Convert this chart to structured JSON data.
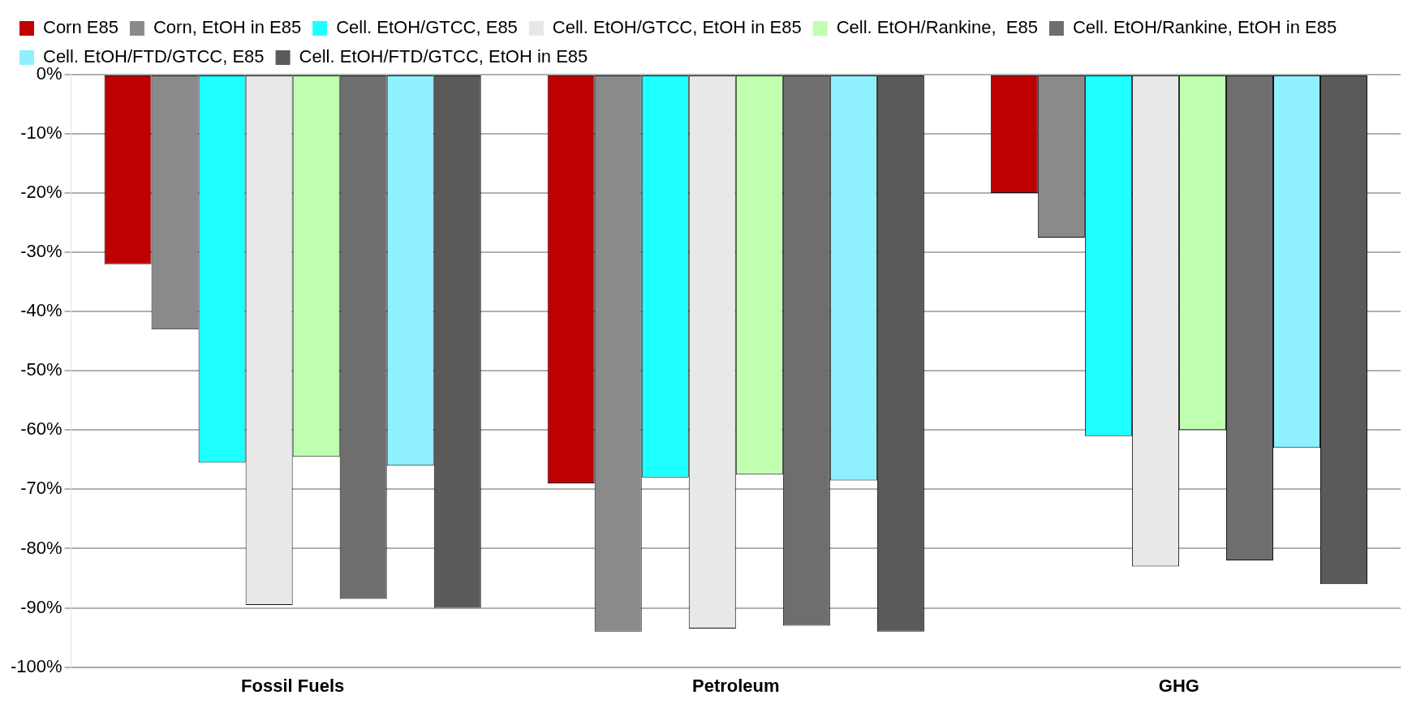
{
  "chart_data": {
    "type": "bar",
    "categories": [
      "Fossil Fuels",
      "Petroleum",
      "GHG"
    ],
    "series": [
      {
        "name": "Corn E85",
        "color": "#bf0000",
        "values": [
          -32,
          -69,
          -20
        ]
      },
      {
        "name": "Corn, EtOH in E85",
        "color": "#8a8a8a",
        "values": [
          -43,
          -94,
          -27.5
        ]
      },
      {
        "name": "Cell. EtOH/GTCC, E85",
        "color": "#1effff",
        "values": [
          -65.5,
          -68,
          -61
        ]
      },
      {
        "name": "Cell. EtOH/GTCC, EtOH in E85",
        "color": "#e8e8e8",
        "values": [
          -89.5,
          -93.5,
          -83
        ]
      },
      {
        "name": "Cell. EtOH/Rankine,  E85",
        "color": "#c0ffb0",
        "values": [
          -64.5,
          -67.5,
          -60
        ]
      },
      {
        "name": "Cell. EtOH/Rankine, EtOH in E85",
        "color": "#6e6e6e",
        "values": [
          -88.5,
          -93,
          -82
        ]
      },
      {
        "name": "Cell. EtOH/FTD/GTCC, E85",
        "color": "#8ff0ff",
        "values": [
          -66,
          -68.5,
          -63
        ]
      },
      {
        "name": "Cell. EtOH/FTD/GTCC, EtOH in E85",
        "color": "#5a5a5a",
        "values": [
          -90,
          -94,
          -86
        ]
      }
    ],
    "ylim": [
      -100,
      0
    ],
    "yticks": [
      {
        "value": 0,
        "label": "0%"
      },
      {
        "value": -10,
        "label": "-10%"
      },
      {
        "value": -20,
        "label": "-20%"
      },
      {
        "value": -30,
        "label": "-30%"
      },
      {
        "value": -40,
        "label": "-40%"
      },
      {
        "value": -50,
        "label": "-50%"
      },
      {
        "value": -60,
        "label": "-60%"
      },
      {
        "value": -70,
        "label": "-70%"
      },
      {
        "value": -80,
        "label": "-80%"
      },
      {
        "value": -90,
        "label": "-90%"
      },
      {
        "value": -100,
        "label": "-100%"
      }
    ],
    "grid": "y",
    "legend": "top"
  }
}
